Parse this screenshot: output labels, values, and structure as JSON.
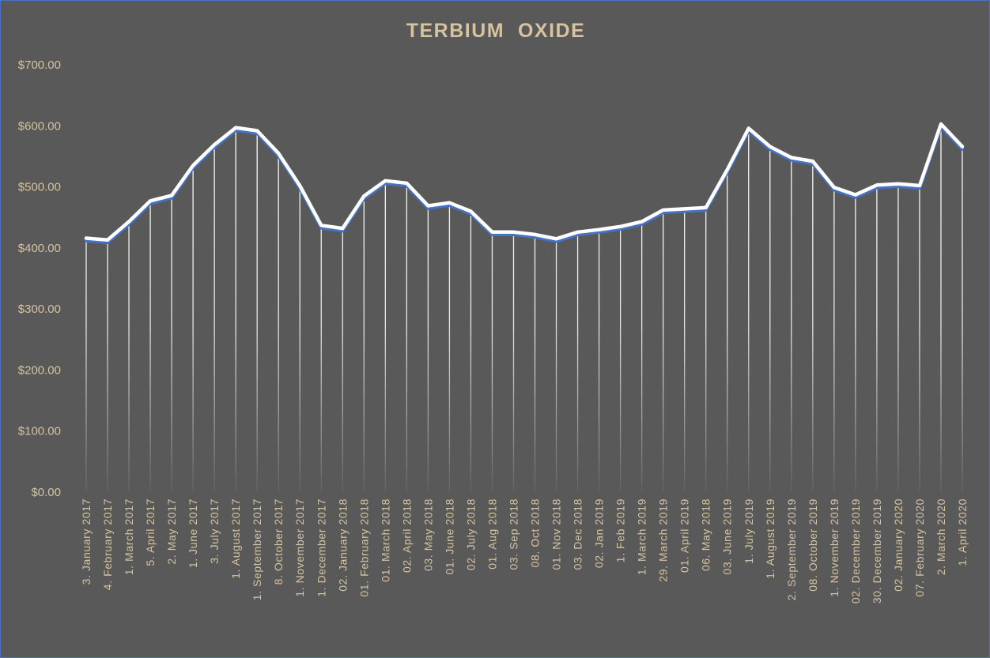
{
  "chart_data": {
    "type": "line",
    "title": "TERBIUM  OXIDE",
    "xlabel": "",
    "ylabel": "",
    "ylim": [
      0,
      700
    ],
    "y_ticks": [
      "$0.00",
      "$100.00",
      "$200.00",
      "$300.00",
      "$400.00",
      "$500.00",
      "$600.00",
      "$700.00"
    ],
    "y_tick_values": [
      0,
      100,
      200,
      300,
      400,
      500,
      600,
      700
    ],
    "grid": false,
    "drop_lines": true,
    "legend": "none",
    "colors": {
      "background": "#595959",
      "line": "#ffffff",
      "line_shadow": "#4472c4",
      "text": "#d6c3a0",
      "border": "#4a72c4"
    },
    "categories": [
      "3. January 2017",
      "4. February 2017",
      "1. March 2017",
      "5. April 2017",
      "2. May 2017",
      "1. June 2017",
      "3. July 2017",
      "1. August 2017",
      "1. September 2017",
      "8. October 2017",
      "1. November 2017",
      "1. December 2017",
      "02. January 2018",
      "01. February 2018",
      "01. March 2018",
      "02. April 2018",
      "03. May 2018",
      "01. June 2018",
      "02. July 2018",
      "01. Aug 2018",
      "03. Sep 2018",
      "08. Oct 2018",
      "01. Nov 2018",
      "03. Dec 2018",
      "02. Jan 2019",
      "1. Feb 2019",
      "1. March 2019",
      "29. March 2019",
      "01. April 2019",
      "06. May 2018",
      "03. June 2019",
      "1. July 2019",
      "1. August 2019",
      "2. September 2019",
      "08. October 2019",
      "1. November 2019",
      "02. December 2019",
      "30. December 2019",
      "02. January 2020",
      "07. February 2020",
      "2. March 2020",
      "1. April 2020"
    ],
    "series": [
      {
        "values": [
          416,
          413,
          443,
          477,
          486,
          535,
          569,
          597,
          592,
          555,
          502,
          437,
          432,
          485,
          510,
          506,
          469,
          474,
          460,
          426,
          426,
          422,
          415,
          426,
          430,
          435,
          443,
          462,
          464,
          466,
          528,
          596,
          566,
          548,
          542,
          499,
          487,
          503,
          505,
          502,
          603,
          566
        ]
      }
    ]
  }
}
